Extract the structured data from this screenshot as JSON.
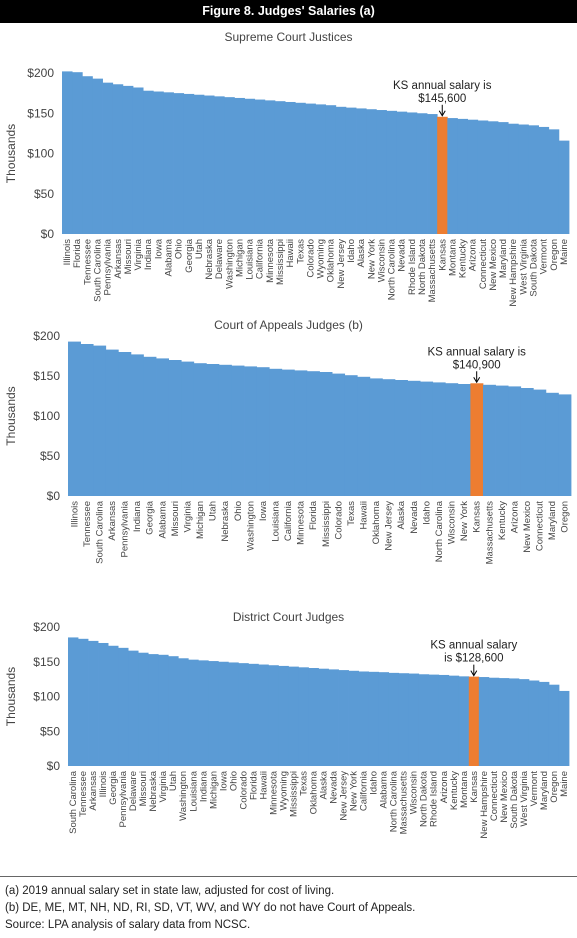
{
  "figure_title": "Figure 8. Judges' Salaries (a)",
  "footnotes": [
    "(a) 2019 annual salary set in state law, adjusted for cost of living.",
    "(b) DE, ME, MT, NH, ND, RI, SD, VT, WV, and WY do not have Court of Appeals.",
    "Source: LPA analysis of salary data from NCSC."
  ],
  "colors": {
    "bar": "#5b9bd5",
    "highlight": "#ed7d31"
  },
  "chart_data": [
    {
      "type": "bar",
      "title": "Supreme Court Justices",
      "ylabel": "Thousands",
      "ylim": [
        0,
        200
      ],
      "yticks": [
        0,
        50,
        100,
        150,
        200
      ],
      "ytick_labels": [
        "$0",
        "$50",
        "$100",
        "$150",
        "$200"
      ],
      "highlight": "Kansas",
      "annotation": [
        "KS annual salary is",
        "$145,600"
      ],
      "categories": [
        "Illinois",
        "Florida",
        "Tennessee",
        "South Carolina",
        "Pennsylvania",
        "Arkansas",
        "Missouri",
        "Virginia",
        "Indiana",
        "Iowa",
        "Alabama",
        "Ohio",
        "Georgia",
        "Utah",
        "Nebraska",
        "Delaware",
        "Washington",
        "Michigan",
        "Louisiana",
        "California",
        "Minnesota",
        "Mississippi",
        "Hawaii",
        "Texas",
        "Colorado",
        "Wyoming",
        "Oklahoma",
        "New Jersey",
        "Idaho",
        "Alaska",
        "New York",
        "Wisconsin",
        "North Carolina",
        "Nevada",
        "Rhode Island",
        "North Dakota",
        "Massachusetts",
        "Kansas",
        "Montana",
        "Kentucky",
        "Arizona",
        "Connecticut",
        "New Mexico",
        "Maryland",
        "New Hampshire",
        "West Virginia",
        "South Dakota",
        "Vermont",
        "Oregon",
        "Maine"
      ],
      "values": [
        202,
        201,
        196,
        193,
        188,
        186,
        184,
        182,
        178,
        177,
        176,
        175,
        174,
        173,
        172,
        171,
        170,
        169,
        168,
        167,
        166,
        165,
        164,
        163,
        162,
        161,
        160,
        158,
        157,
        156,
        155,
        154,
        153,
        152,
        151,
        150,
        149,
        145.6,
        144,
        143,
        142,
        141,
        140,
        139,
        137,
        136,
        135,
        133,
        130,
        116
      ]
    },
    {
      "type": "bar",
      "title": "Court of Appeals Judges (b)",
      "ylabel": "Thousands",
      "ylim": [
        0,
        200
      ],
      "yticks": [
        0,
        50,
        100,
        150,
        200
      ],
      "ytick_labels": [
        "$0",
        "$50",
        "$100",
        "$150",
        "$200"
      ],
      "highlight": "Kansas",
      "annotation": [
        "KS annual salary is",
        "$140,900"
      ],
      "categories": [
        "Illinois",
        "Tennessee",
        "South Carolina",
        "Arkansas",
        "Pennsylvania",
        "Indiana",
        "Georgia",
        "Alabama",
        "Missouri",
        "Virginia",
        "Michigan",
        "Utah",
        "Nebraska",
        "Ohio",
        "Washington",
        "Iowa",
        "Louisiana",
        "California",
        "Minnesota",
        "Florida",
        "Mississippi",
        "Colorado",
        "Texas",
        "Hawaii",
        "Oklahoma",
        "New Jersey",
        "Alaska",
        "Nevada",
        "Idaho",
        "North Carolina",
        "Wisconsin",
        "New York",
        "Kansas",
        "Massachusetts",
        "Kentucky",
        "Arizona",
        "New Mexico",
        "Connecticut",
        "Maryland",
        "Oregon"
      ],
      "values": [
        193,
        190,
        188,
        183,
        180,
        177,
        174,
        172,
        170,
        168,
        166,
        165,
        164,
        163,
        162,
        161,
        159,
        158,
        157,
        156,
        155,
        153,
        151,
        149,
        147,
        146,
        145,
        144,
        143,
        142,
        141,
        140,
        140.9,
        139,
        138,
        137,
        135,
        133,
        129,
        127
      ]
    },
    {
      "type": "bar",
      "title": "District Court Judges",
      "ylabel": "Thousands",
      "ylim": [
        0,
        200
      ],
      "yticks": [
        0,
        50,
        100,
        150,
        200
      ],
      "ytick_labels": [
        "$0",
        "$50",
        "$100",
        "$150",
        "$200"
      ],
      "highlight": "Kansas",
      "annotation": [
        "KS annual salary",
        "is $128,600"
      ],
      "categories": [
        "South Carolina",
        "Tennessee",
        "Arkansas",
        "Illinois",
        "Georgia",
        "Pennsylvania",
        "Delaware",
        "Missouri",
        "Nebraska",
        "Virginia",
        "Utah",
        "Washington",
        "Louisiana",
        "Indiana",
        "Michigan",
        "Iowa",
        "Ohio",
        "Colorado",
        "Florida",
        "Hawaii",
        "Minnesota",
        "Wyoming",
        "Mississippi",
        "Texas",
        "Oklahoma",
        "Alaska",
        "Nevada",
        "New Jersey",
        "New York",
        "California",
        "Idaho",
        "Alabama",
        "North Carolina",
        "Massachusetts",
        "Wisconsin",
        "North Dakota",
        "Rhode Island",
        "Arizona",
        "Kentucky",
        "Montana",
        "Kansas",
        "New Hampshire",
        "Connecticut",
        "New Mexico",
        "South Dakota",
        "West Virginia",
        "Vermont",
        "Maryland",
        "Oregon",
        "Maine"
      ],
      "values": [
        185,
        183,
        180,
        177,
        173,
        170,
        166,
        163,
        161,
        160,
        158,
        155,
        153,
        152,
        151,
        150,
        149,
        148,
        147,
        146,
        145,
        144,
        143,
        142,
        141,
        140,
        139,
        138,
        137,
        136,
        135.5,
        135,
        134,
        133.5,
        133,
        132,
        131.5,
        131,
        130,
        129,
        128.6,
        128,
        127,
        126.5,
        126,
        125,
        123,
        121,
        117,
        108
      ]
    }
  ]
}
